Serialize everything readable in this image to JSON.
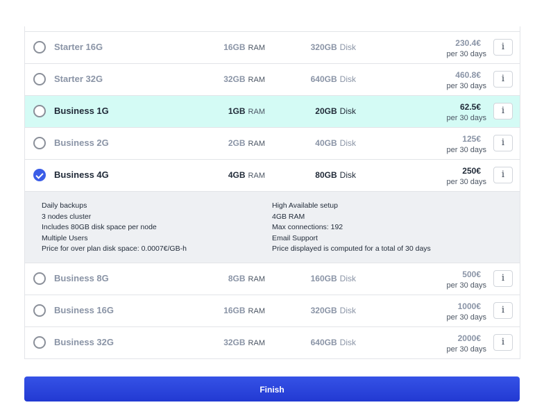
{
  "plans": [
    {
      "name": "Starter 16G",
      "ram": "16GB",
      "ram_unit": "RAM",
      "disk": "320GB",
      "disk_unit": "Disk",
      "price": "230.4€",
      "period": "per 30 days",
      "state": "unselected",
      "info": "i"
    },
    {
      "name": "Starter 32G",
      "ram": "32GB",
      "ram_unit": "RAM",
      "disk": "640GB",
      "disk_unit": "Disk",
      "price": "460.8€",
      "period": "per 30 days",
      "state": "unselected",
      "info": "i"
    },
    {
      "name": "Business 1G",
      "ram": "1GB",
      "ram_unit": "RAM",
      "disk": "20GB",
      "disk_unit": "Disk",
      "price": "62.5€",
      "period": "per 30 days",
      "state": "hovered",
      "info": "i"
    },
    {
      "name": "Business 2G",
      "ram": "2GB",
      "ram_unit": "RAM",
      "disk": "40GB",
      "disk_unit": "Disk",
      "price": "125€",
      "period": "per 30 days",
      "state": "unselected",
      "info": "i"
    },
    {
      "name": "Business 4G",
      "ram": "4GB",
      "ram_unit": "RAM",
      "disk": "80GB",
      "disk_unit": "Disk",
      "price": "250€",
      "period": "per 30 days",
      "state": "selected",
      "info": "i"
    },
    {
      "name": "Business 8G",
      "ram": "8GB",
      "ram_unit": "RAM",
      "disk": "160GB",
      "disk_unit": "Disk",
      "price": "500€",
      "period": "per 30 days",
      "state": "unselected",
      "info": "i"
    },
    {
      "name": "Business 16G",
      "ram": "16GB",
      "ram_unit": "RAM",
      "disk": "320GB",
      "disk_unit": "Disk",
      "price": "1000€",
      "period": "per 30 days",
      "state": "unselected",
      "info": "i"
    },
    {
      "name": "Business 32G",
      "ram": "32GB",
      "ram_unit": "RAM",
      "disk": "640GB",
      "disk_unit": "Disk",
      "price": "2000€",
      "period": "per 30 days",
      "state": "unselected",
      "info": "i"
    }
  ],
  "selected_details": {
    "left": [
      "Daily backups",
      "3 nodes cluster",
      "Includes 80GB disk space per node",
      "Multiple Users",
      "Price for over plan disk space: 0.0007€/GB-h"
    ],
    "right": [
      "High Available setup",
      "4GB RAM",
      "Max connections: 192",
      "Email Support",
      "Price displayed is computed for a total of 30 days"
    ]
  },
  "finish_label": "Finish",
  "colors": {
    "accent": "#3b5de7",
    "highlight": "#d4fbf5",
    "muted_text": "#8a94a6",
    "details_bg": "#eef0f3"
  }
}
